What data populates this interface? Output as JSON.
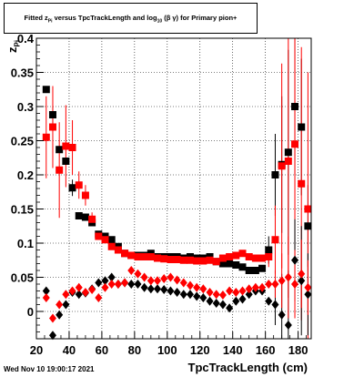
{
  "title": {
    "prefix": "Fitted  z",
    "sub1": "Pi",
    "mid": "  versus TpcTrackLength and log",
    "sub2": "10",
    "suffix": "(β  γ) for Primary pion+"
  },
  "footer_stamp": "Wed Nov 10 19:00:17 2021",
  "chart_data": {
    "type": "scatter",
    "title": "Fitted  zPi  versus TpcTrackLength and log10(β  γ) for Primary pion+",
    "xlabel": "TpcTrackLength (cm)",
    "ylabel": "zPi",
    "xlim": [
      20,
      188
    ],
    "ylim": [
      -0.04,
      0.4
    ],
    "grid": true,
    "xticks": [
      20,
      40,
      60,
      80,
      100,
      120,
      140,
      160,
      180
    ],
    "yticks": [
      0,
      0.05,
      0.1,
      0.15,
      0.2,
      0.25,
      0.3,
      0.35,
      0.4
    ],
    "ytick_labels": [
      "0",
      "0.05",
      "0.1",
      "0.15",
      "0.2",
      "0.25",
      "0.3",
      "0.35",
      "0.4"
    ],
    "series": [
      {
        "name": "",
        "color": "#000000",
        "marker": "square",
        "points": [
          [
            26,
            0.325
          ],
          [
            30,
            0.288
          ],
          [
            34,
            0.237
          ],
          [
            38,
            0.22
          ],
          [
            42,
            0.181
          ],
          [
            46,
            0.14
          ],
          [
            50,
            0.138
          ],
          [
            54,
            0.13
          ],
          [
            58,
            0.113
          ],
          [
            62,
            0.11
          ],
          [
            66,
            0.105
          ],
          [
            70,
            0.095
          ],
          [
            74,
            0.085
          ],
          [
            78,
            0.082
          ],
          [
            82,
            0.082
          ],
          [
            86,
            0.082
          ],
          [
            90,
            0.085
          ],
          [
            94,
            0.08
          ],
          [
            98,
            0.08
          ],
          [
            102,
            0.08
          ],
          [
            106,
            0.08
          ],
          [
            110,
            0.078
          ],
          [
            114,
            0.08
          ],
          [
            118,
            0.078
          ],
          [
            122,
            0.078
          ],
          [
            126,
            0.08
          ],
          [
            130,
            0.073
          ],
          [
            134,
            0.07
          ],
          [
            138,
            0.07
          ],
          [
            142,
            0.068
          ],
          [
            146,
            0.065
          ],
          [
            150,
            0.06
          ],
          [
            154,
            0.06
          ],
          [
            158,
            0.063
          ],
          [
            162,
            0.09
          ],
          [
            166,
            0.2
          ],
          [
            170,
            0.215
          ],
          [
            174,
            0.233
          ],
          [
            178,
            0.3
          ],
          [
            182,
            0.27
          ],
          [
            186,
            0.125
          ]
        ],
        "errors": [
          0,
          0.012,
          0,
          0,
          0.012,
          0,
          0,
          0,
          0,
          0,
          0,
          0,
          0,
          0,
          0,
          0,
          0,
          0,
          0,
          0,
          0,
          0,
          0,
          0,
          0,
          0,
          0,
          0,
          0,
          0,
          0,
          0,
          0,
          0,
          0.02,
          0.06,
          0.1,
          0.15,
          0.1,
          0.1,
          0.06
        ]
      },
      {
        "name": "",
        "color": "#ff0000",
        "marker": "square",
        "points": [
          [
            26,
            0.255
          ],
          [
            30,
            0.27
          ],
          [
            34,
            0.207
          ],
          [
            38,
            0.242
          ],
          [
            42,
            0.24
          ],
          [
            46,
            0.185
          ],
          [
            50,
            0.17
          ],
          [
            54,
            0.135
          ],
          [
            58,
            0.11
          ],
          [
            62,
            0.105
          ],
          [
            66,
            0.095
          ],
          [
            70,
            0.09
          ],
          [
            74,
            0.085
          ],
          [
            78,
            0.082
          ],
          [
            82,
            0.08
          ],
          [
            86,
            0.08
          ],
          [
            90,
            0.08
          ],
          [
            94,
            0.078
          ],
          [
            98,
            0.077
          ],
          [
            102,
            0.076
          ],
          [
            106,
            0.076
          ],
          [
            110,
            0.075
          ],
          [
            114,
            0.075
          ],
          [
            118,
            0.074
          ],
          [
            122,
            0.074
          ],
          [
            126,
            0.075
          ],
          [
            130,
            0.073
          ],
          [
            134,
            0.078
          ],
          [
            138,
            0.08
          ],
          [
            142,
            0.082
          ],
          [
            146,
            0.085
          ],
          [
            150,
            0.08
          ],
          [
            154,
            0.078
          ],
          [
            158,
            0.078
          ],
          [
            162,
            0.08
          ],
          [
            166,
            0.105
          ],
          [
            170,
            0.213
          ],
          [
            174,
            0.22
          ],
          [
            178,
            0.245
          ],
          [
            182,
            0.187
          ],
          [
            186,
            0.15
          ]
        ],
        "errors": [
          0.06,
          0.06,
          0.07,
          0.06,
          0.04,
          0.02,
          0.015,
          0.01,
          0,
          0,
          0,
          0,
          0,
          0,
          0,
          0,
          0,
          0,
          0,
          0,
          0,
          0,
          0,
          0,
          0,
          0,
          0,
          0,
          0,
          0,
          0,
          0,
          0,
          0,
          0.015,
          0.05,
          0.15,
          0.2,
          0.2,
          0.2,
          0.2
        ]
      },
      {
        "name": "",
        "color": "#000000",
        "marker": "diamond",
        "points": [
          [
            26,
            0.03
          ],
          [
            30,
            -0.035
          ],
          [
            34,
            -0.005
          ],
          [
            38,
            0.01
          ],
          [
            42,
            0.028
          ],
          [
            46,
            0.025
          ],
          [
            50,
            0.027
          ],
          [
            54,
            0.033
          ],
          [
            58,
            0.042
          ],
          [
            62,
            0.045
          ],
          [
            66,
            0.05
          ],
          [
            70,
            0.04
          ],
          [
            74,
            0.042
          ],
          [
            78,
            0.04
          ],
          [
            82,
            0.04
          ],
          [
            86,
            0.035
          ],
          [
            90,
            0.033
          ],
          [
            94,
            0.033
          ],
          [
            98,
            0.032
          ],
          [
            102,
            0.03
          ],
          [
            106,
            0.028
          ],
          [
            110,
            0.025
          ],
          [
            114,
            0.025
          ],
          [
            118,
            0.022
          ],
          [
            122,
            0.02
          ],
          [
            126,
            0.015
          ],
          [
            130,
            0.012
          ],
          [
            134,
            0.01
          ],
          [
            138,
            0.005
          ],
          [
            142,
            0.015
          ],
          [
            146,
            0.018
          ],
          [
            150,
            0.025
          ],
          [
            154,
            0.03
          ],
          [
            158,
            0.03
          ],
          [
            162,
            0.015
          ],
          [
            166,
            0.01
          ],
          [
            170,
            -0.005
          ],
          [
            174,
            -0.02
          ],
          [
            178,
            0.075
          ],
          [
            182,
            0.045
          ],
          [
            186,
            0.025
          ]
        ],
        "errors": [
          0,
          0,
          0,
          0,
          0,
          0,
          0,
          0,
          0,
          0,
          0,
          0,
          0,
          0,
          0,
          0,
          0,
          0,
          0,
          0,
          0,
          0,
          0,
          0,
          0,
          0,
          0,
          0,
          0,
          0,
          0,
          0,
          0,
          0,
          0,
          0.03,
          0.06,
          0.08,
          0.06,
          0.08,
          0.06
        ]
      },
      {
        "name": "",
        "color": "#ff0000",
        "marker": "diamond",
        "points": [
          [
            26,
            0.02
          ],
          [
            30,
            -0.01
          ],
          [
            34,
            0.01
          ],
          [
            38,
            0.025
          ],
          [
            42,
            0.03
          ],
          [
            46,
            0.035
          ],
          [
            50,
            0.028
          ],
          [
            54,
            0.032
          ],
          [
            58,
            0.02
          ],
          [
            62,
            0.035
          ],
          [
            66,
            0.04
          ],
          [
            70,
            0.04
          ],
          [
            74,
            0.042
          ],
          [
            78,
            0.06
          ],
          [
            82,
            0.055
          ],
          [
            86,
            0.05
          ],
          [
            90,
            0.045
          ],
          [
            94,
            0.045
          ],
          [
            98,
            0.048
          ],
          [
            102,
            0.05
          ],
          [
            106,
            0.046
          ],
          [
            110,
            0.042
          ],
          [
            114,
            0.038
          ],
          [
            118,
            0.035
          ],
          [
            122,
            0.033
          ],
          [
            126,
            0.028
          ],
          [
            130,
            0.025
          ],
          [
            134,
            0.024
          ],
          [
            138,
            0.03
          ],
          [
            142,
            0.028
          ],
          [
            146,
            0.03
          ],
          [
            150,
            0.033
          ],
          [
            154,
            0.035
          ],
          [
            158,
            0.035
          ],
          [
            162,
            0.04
          ],
          [
            166,
            0.04
          ],
          [
            170,
            0.045
          ],
          [
            174,
            0.05
          ],
          [
            178,
            0.04
          ],
          [
            182,
            0.055
          ],
          [
            186,
            0.035
          ]
        ],
        "errors": [
          0,
          0,
          0,
          0,
          0,
          0,
          0,
          0,
          0,
          0,
          0,
          0,
          0,
          0,
          0,
          0,
          0,
          0,
          0,
          0,
          0,
          0,
          0,
          0,
          0,
          0,
          0,
          0,
          0,
          0,
          0,
          0,
          0,
          0,
          0,
          0.02,
          0.04,
          0.06,
          0.05,
          0.05,
          0.04
        ]
      }
    ]
  }
}
